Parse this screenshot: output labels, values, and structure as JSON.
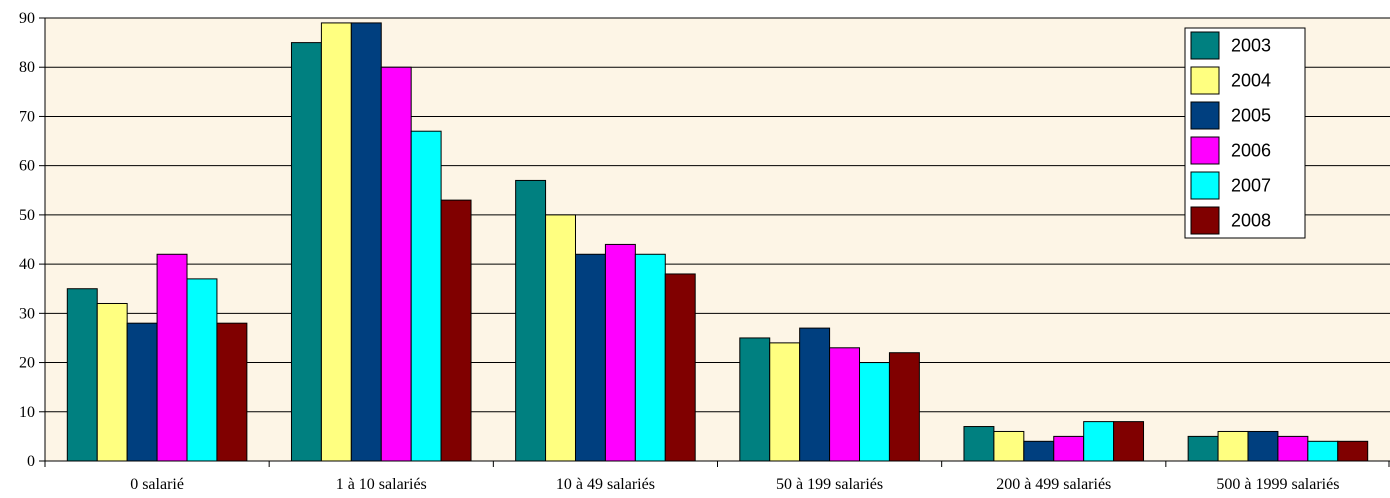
{
  "chart_data": {
    "type": "bar",
    "title": "",
    "xlabel": "",
    "ylabel": "",
    "ylim": [
      0,
      90
    ],
    "yticks": [
      0,
      10,
      20,
      30,
      40,
      50,
      60,
      70,
      80,
      90
    ],
    "grid": true,
    "legend_position": "top-right",
    "categories": [
      "0 salarié",
      "1 à 10 salariés",
      "10 à 49 salariés",
      "50 à 199 salariés",
      "200 à 499 salariés",
      "500 à 1999 salariés"
    ],
    "series": [
      {
        "name": "2003",
        "color": "#008080",
        "values": [
          35,
          85,
          57,
          25,
          7,
          5
        ]
      },
      {
        "name": "2004",
        "color": "#FFFF80",
        "values": [
          32,
          89,
          50,
          24,
          6,
          6
        ]
      },
      {
        "name": "2005",
        "color": "#003F7F",
        "values": [
          28,
          89,
          42,
          27,
          4,
          6
        ]
      },
      {
        "name": "2006",
        "color": "#FF00FF",
        "values": [
          42,
          80,
          44,
          23,
          5,
          5
        ]
      },
      {
        "name": "2007",
        "color": "#00FFFF",
        "values": [
          37,
          67,
          42,
          20,
          8,
          4
        ]
      },
      {
        "name": "2008",
        "color": "#800000",
        "values": [
          28,
          53,
          38,
          22,
          8,
          4
        ]
      }
    ],
    "plot_background": "#FDF5E6"
  }
}
